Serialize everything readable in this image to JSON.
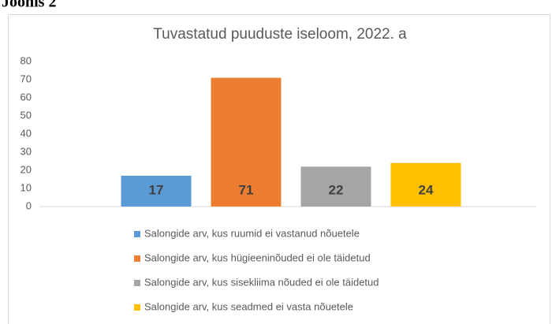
{
  "caption": "Joonis 2",
  "chart_data": {
    "type": "bar",
    "title": "Tuvastatud puuduste iseloom, 2022. a",
    "categories": [
      null
    ],
    "series": [
      {
        "name": "Salongide arv, kus ruumid ei vastanud nõuetele",
        "color": "#5b9bd5",
        "values": [
          17
        ]
      },
      {
        "name": "Salongide arv, kus hügieeninõuded ei ole täidetud",
        "color": "#ed7d31",
        "values": [
          71
        ]
      },
      {
        "name": "Salongide arv, kus sisekliima nõuded ei ole täidetud",
        "color": "#a5a5a5",
        "values": [
          22
        ]
      },
      {
        "name": "Salongide arv, kus seadmed ei vasta nõuetele",
        "color": "#ffc000",
        "values": [
          24
        ]
      }
    ],
    "ylim": [
      0,
      80
    ],
    "yticks": [
      0,
      10,
      20,
      30,
      40,
      50,
      60,
      70,
      80
    ],
    "grid": false,
    "legend": "bottom"
  }
}
